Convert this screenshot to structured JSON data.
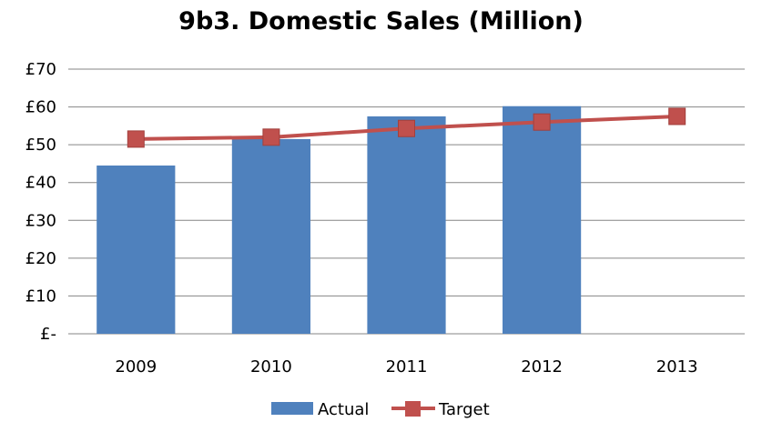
{
  "chart_data": {
    "type": "bar",
    "title": "9b3. Domestic Sales (Million)",
    "categories": [
      "2009",
      "2010",
      "2011",
      "2012",
      "2013"
    ],
    "series": [
      {
        "name": "Actual",
        "type": "bar",
        "color": "#4F81BD",
        "values": [
          44.5,
          51.5,
          57.5,
          60.2,
          null
        ]
      },
      {
        "name": "Target",
        "type": "line",
        "marker": "square",
        "color": "#C0504D",
        "values": [
          51.5,
          52.0,
          54.3,
          56.0,
          57.5
        ]
      }
    ],
    "yticks": [
      {
        "value": 0,
        "label": "£-"
      },
      {
        "value": 10,
        "label": "£10"
      },
      {
        "value": 20,
        "label": "£20"
      },
      {
        "value": 30,
        "label": "£30"
      },
      {
        "value": 40,
        "label": "£40"
      },
      {
        "value": 50,
        "label": "£50"
      },
      {
        "value": 60,
        "label": "£60"
      },
      {
        "value": 70,
        "label": "£70"
      }
    ],
    "ylim": [
      0,
      70
    ],
    "xlabel": "",
    "ylabel": "",
    "grid": true,
    "legend": "bottom"
  }
}
